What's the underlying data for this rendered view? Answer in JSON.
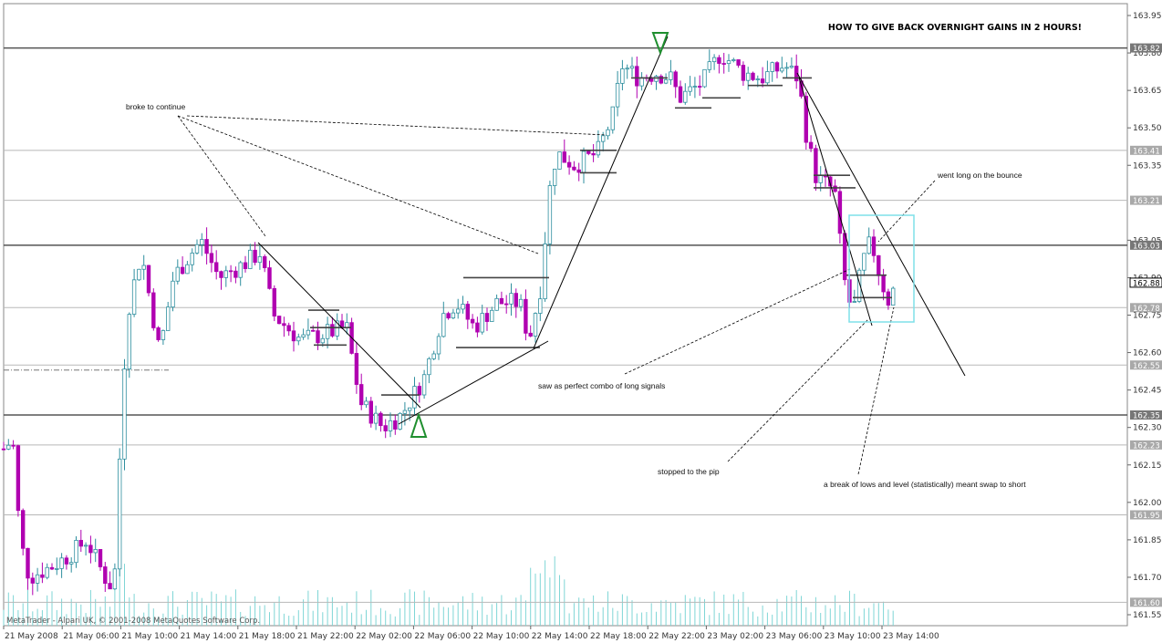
{
  "chart_data": {
    "type": "candlestick",
    "title": "HOW TO GIVE BACK OVERNIGHT GAINS IN 2 HOURS!",
    "copyright": "MetaTrader - Alpari UK, © 2001-2008 MetaQuotes Software Corp.",
    "ylim": [
      161.5,
      163.98
    ],
    "price_ticks": [
      "163.95",
      "163.80",
      "163.65",
      "163.50",
      "163.35",
      "163.05",
      "162.90",
      "162.75",
      "162.60",
      "162.45",
      "162.30",
      "162.15",
      "162.00",
      "161.85",
      "161.70",
      "161.55"
    ],
    "time_labels": [
      "21 May 2008",
      "21 May 06:00",
      "21 May 10:00",
      "21 May 14:00",
      "21 May 18:00",
      "21 May 22:00",
      "22 May 02:00",
      "22 May 06:00",
      "22 May 10:00",
      "22 May 14:00",
      "22 May 18:00",
      "22 May 22:00",
      "23 May 02:00",
      "23 May 06:00",
      "23 May 10:00",
      "23 May 14:00"
    ],
    "level_lines": [
      {
        "label": "163.82",
        "price": 163.82,
        "style": "dark"
      },
      {
        "label": "163.41",
        "price": 163.41,
        "style": "light"
      },
      {
        "label": "163.21",
        "price": 163.21,
        "style": "light"
      },
      {
        "label": "163.03",
        "price": 163.03,
        "style": "dark"
      },
      {
        "label": "162.88",
        "price": 162.88,
        "style": "current"
      },
      {
        "label": "162.78",
        "price": 162.78,
        "style": "light"
      },
      {
        "label": "162.55",
        "price": 162.55,
        "style": "light"
      },
      {
        "label": "162.35",
        "price": 162.35,
        "style": "dark"
      },
      {
        "label": "162.23",
        "price": 162.23,
        "style": "light"
      },
      {
        "label": "161.95",
        "price": 161.95,
        "style": "light"
      },
      {
        "label": "161.60",
        "price": 161.6,
        "style": "light"
      }
    ],
    "annotations": [
      "broke to continue",
      "went long on the bounce",
      "saw as perfect combo of long signals",
      "stopped to the pip",
      "a break of lows and level (statistically) meant swap to short"
    ],
    "colors": {
      "bull": "#2f8f9f",
      "bear": "#b000b0",
      "volume": "#7fd6d6",
      "level_dark": "#555555",
      "level_light": "#b8b8b8",
      "badge": "#a9a9a9",
      "badge_dark": "#777777",
      "triangle": "#1f8f2f",
      "box": "#7fe0e8"
    }
  }
}
